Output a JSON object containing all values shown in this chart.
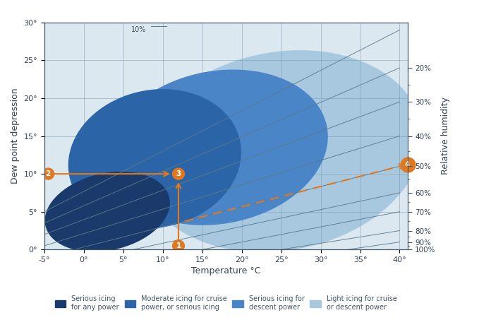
{
  "xlabel": "Temperature °C",
  "ylabel": "Dew point depression",
  "ylabel_right": "Relative humidity",
  "xlim": [
    -5,
    41
  ],
  "ylim": [
    0,
    30
  ],
  "xticks": [
    -5,
    0,
    5,
    10,
    15,
    20,
    25,
    30,
    35,
    40
  ],
  "yticks": [
    0,
    5,
    10,
    15,
    20,
    25,
    30
  ],
  "background_color": "#dce8f0",
  "grid_color": "#7a9ab0",
  "color_serious_any": "#1a3a6b",
  "color_moderate_cruise": "#2b65a8",
  "color_serious_descent": "#4a85c8",
  "color_light_cruise": "#a8c8e0",
  "arrow_color": "#e07820",
  "legend_labels": [
    "Serious icing\nfor any power",
    "Moderate icing for cruise\npower, or serious icing",
    "Serious icing for\ndescent power",
    "Light icing for cruise\nor descent power"
  ],
  "rh_lines": [
    [
      10,
      -5,
      5.0,
      40,
      29.0
    ],
    [
      20,
      -5,
      3.5,
      40,
      24.0
    ],
    [
      30,
      -5,
      2.0,
      40,
      19.5
    ],
    [
      40,
      -5,
      0.5,
      40,
      15.0
    ],
    [
      50,
      -5,
      -1.0,
      40,
      11.0
    ],
    [
      60,
      -5,
      -2.5,
      40,
      7.5
    ],
    [
      70,
      -5,
      -4.0,
      40,
      5.0
    ],
    [
      80,
      -5,
      -5.0,
      40,
      2.5
    ],
    [
      90,
      -5,
      -5.8,
      40,
      1.0
    ],
    [
      100,
      -5,
      -6.5,
      40,
      0.0
    ]
  ],
  "rh_right_ticks_pct": [
    20,
    30,
    40,
    50,
    60,
    70,
    80,
    90,
    100
  ],
  "rh_right_positions": [
    24.0,
    19.5,
    15.0,
    11.0,
    7.5,
    5.0,
    2.5,
    1.0,
    0.0
  ],
  "point1": [
    12,
    0
  ],
  "point2": [
    -5,
    10
  ],
  "point3": [
    12,
    10
  ],
  "dashed_rh": 50,
  "dashed_start_x": 12.8,
  "dashed_end_x": 40.5,
  "point4_rh": 50
}
